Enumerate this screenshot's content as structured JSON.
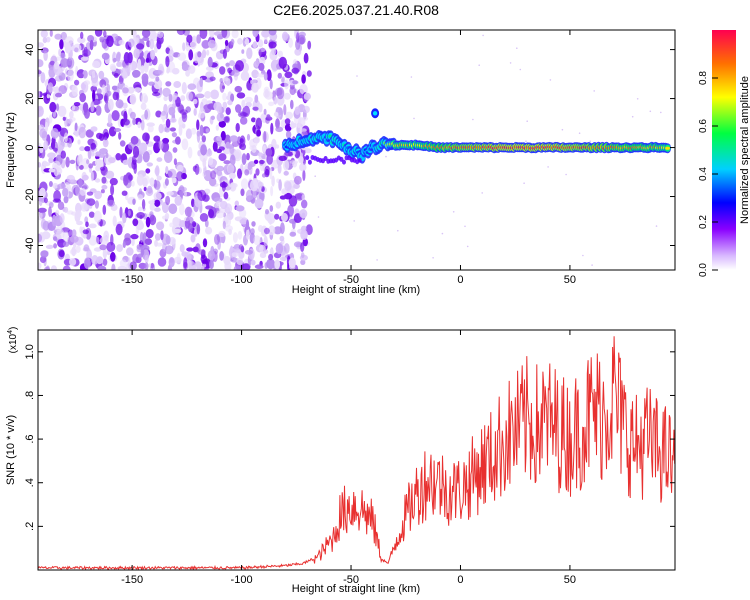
{
  "title": "C2E6.2025.037.21.40.R08",
  "colors": {
    "scatter_purple": "#6a00e8",
    "scatter_light": "#c7a6f5",
    "snr_line": "#e8302f",
    "colorbar": [
      "#a000ff",
      "#0000ff",
      "#00c8ff",
      "#00ff60",
      "#ffff00",
      "#ff8000",
      "#ff0050"
    ]
  },
  "chart_data": [
    {
      "id": "spectrogram",
      "type": "heatmap",
      "xlabel": "Height of straight line (km)",
      "ylabel": "Frequency (Hz)",
      "xlim": [
        -193,
        98
      ],
      "ylim": [
        -50,
        48
      ],
      "xticks": [
        -150,
        -100,
        -50,
        0,
        50
      ],
      "yticks": [
        -40,
        -20,
        0,
        20,
        40
      ],
      "colorbar": {
        "label": "Normalized spectral amplitude",
        "range": [
          0,
          1
        ],
        "ticks": [
          "0.0",
          "0.2",
          "0.4",
          "0.6",
          "0.8"
        ]
      },
      "description_points": {
        "noise_region_x": [
          -193,
          -75
        ],
        "signal_line": [
          {
            "x": -80,
            "y": 0,
            "level": 0.35
          },
          {
            "x": -70,
            "y": 4,
            "level": 0.45
          },
          {
            "x": -60,
            "y": 4,
            "level": 0.5
          },
          {
            "x": -55,
            "y": 2,
            "level": 0.45
          },
          {
            "x": -50,
            "y": -1,
            "level": 0.45
          },
          {
            "x": -45,
            "y": -3,
            "level": 0.4
          },
          {
            "x": -40,
            "y": 0,
            "level": 0.4
          },
          {
            "x": -35,
            "y": 2,
            "level": 0.6
          },
          {
            "x": -30,
            "y": 1,
            "level": 0.8
          },
          {
            "x": -20,
            "y": 1,
            "level": 0.8
          },
          {
            "x": -10,
            "y": 0,
            "level": 0.85
          },
          {
            "x": 0,
            "y": 0,
            "level": 0.9
          },
          {
            "x": 20,
            "y": 0,
            "level": 0.95
          },
          {
            "x": 40,
            "y": 0,
            "level": 0.95
          },
          {
            "x": 60,
            "y": 0,
            "level": 0.9
          },
          {
            "x": 80,
            "y": 0,
            "level": 0.85
          },
          {
            "x": 95,
            "y": 0,
            "level": 0.8
          }
        ],
        "spot": {
          "x": -39,
          "y": 14
        }
      }
    },
    {
      "id": "snr",
      "type": "line",
      "xlabel": "Height of straight line (km)",
      "ylabel": "SNR (10 * v/v)",
      "y_multiplier": "(x10^4)",
      "xlim": [
        -193,
        98
      ],
      "ylim": [
        0,
        1.1
      ],
      "xticks": [
        -150,
        -100,
        -50,
        0,
        50
      ],
      "yticks": [
        0.2,
        0.4,
        0.6,
        0.8,
        1.0
      ],
      "series": [
        {
          "x": [
            -193,
            -150,
            -100,
            -80,
            -72,
            -65,
            -58,
            -55,
            -50,
            -45,
            -40,
            -36,
            -33,
            -30,
            -25,
            -20,
            -15,
            -10,
            -5,
            0,
            5,
            10,
            15,
            20,
            25,
            30,
            35,
            40,
            45,
            50,
            55,
            60,
            65,
            70,
            75,
            80,
            85,
            90,
            95,
            98
          ],
          "y": [
            0.01,
            0.01,
            0.01,
            0.02,
            0.03,
            0.06,
            0.15,
            0.25,
            0.3,
            0.28,
            0.22,
            0.05,
            0.03,
            0.12,
            0.25,
            0.35,
            0.42,
            0.4,
            0.36,
            0.37,
            0.42,
            0.48,
            0.52,
            0.6,
            0.63,
            0.68,
            0.66,
            0.68,
            0.64,
            0.6,
            0.66,
            0.72,
            0.72,
            0.8,
            0.64,
            0.56,
            0.6,
            0.55,
            0.52,
            0.45
          ]
        }
      ]
    }
  ]
}
